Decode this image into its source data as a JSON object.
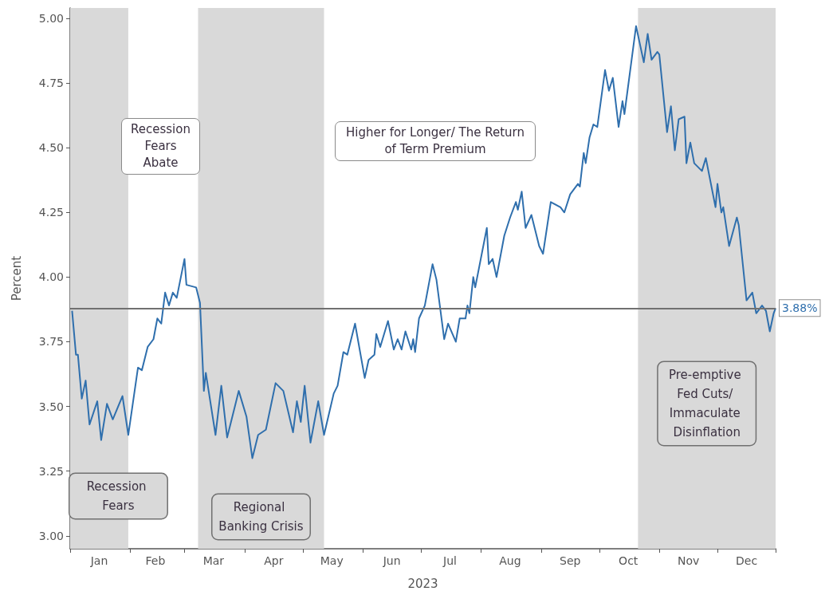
{
  "chart_data": {
    "type": "line",
    "xlabel": "2023",
    "ylabel": "Percent",
    "x": [
      "2023-01-02",
      "2023-01-04",
      "2023-01-05",
      "2023-01-07",
      "2023-01-09",
      "2023-01-11",
      "2023-01-15",
      "2023-01-17",
      "2023-01-20",
      "2023-01-23",
      "2023-01-28",
      "2023-01-31",
      "2023-02-05",
      "2023-02-07",
      "2023-02-10",
      "2023-02-13",
      "2023-02-15",
      "2023-02-17",
      "2023-02-19",
      "2023-02-21",
      "2023-02-23",
      "2023-02-25",
      "2023-03-01",
      "2023-03-02",
      "2023-03-07",
      "2023-03-09",
      "2023-03-11",
      "2023-03-12",
      "2023-03-17",
      "2023-03-20",
      "2023-03-23",
      "2023-03-29",
      "2023-04-02",
      "2023-04-05",
      "2023-04-08",
      "2023-04-12",
      "2023-04-17",
      "2023-04-21",
      "2023-04-26",
      "2023-04-28",
      "2023-04-30",
      "2023-05-02",
      "2023-05-05",
      "2023-05-09",
      "2023-05-12",
      "2023-05-17",
      "2023-05-19",
      "2023-05-22",
      "2023-05-24",
      "2023-05-28",
      "2023-06-02",
      "2023-06-04",
      "2023-06-07",
      "2023-06-08",
      "2023-06-10",
      "2023-06-14",
      "2023-06-17",
      "2023-06-19",
      "2023-06-21",
      "2023-06-23",
      "2023-06-26",
      "2023-06-27",
      "2023-06-28",
      "2023-06-30",
      "2023-07-03",
      "2023-07-07",
      "2023-07-09",
      "2023-07-13",
      "2023-07-15",
      "2023-07-19",
      "2023-07-21",
      "2023-07-24",
      "2023-07-25",
      "2023-07-26",
      "2023-07-28",
      "2023-07-29",
      "2023-08-04",
      "2023-08-05",
      "2023-08-07",
      "2023-08-09",
      "2023-08-13",
      "2023-08-16",
      "2023-08-19",
      "2023-08-20",
      "2023-08-22",
      "2023-08-24",
      "2023-08-27",
      "2023-08-31",
      "2023-09-02",
      "2023-09-06",
      "2023-09-11",
      "2023-09-13",
      "2023-09-16",
      "2023-09-20",
      "2023-09-21",
      "2023-09-23",
      "2023-09-24",
      "2023-09-26",
      "2023-09-28",
      "2023-09-30",
      "2023-10-04",
      "2023-10-06",
      "2023-10-08",
      "2023-10-11",
      "2023-10-13",
      "2023-10-14",
      "2023-10-20",
      "2023-10-24",
      "2023-10-26",
      "2023-10-28",
      "2023-10-31",
      "2023-11-01",
      "2023-11-05",
      "2023-11-07",
      "2023-11-09",
      "2023-11-11",
      "2023-11-14",
      "2023-11-15",
      "2023-11-17",
      "2023-11-19",
      "2023-11-23",
      "2023-11-25",
      "2023-11-30",
      "2023-12-01",
      "2023-12-03",
      "2023-12-04",
      "2023-12-07",
      "2023-12-11",
      "2023-12-12",
      "2023-12-16",
      "2023-12-19",
      "2023-12-21",
      "2023-12-24",
      "2023-12-26",
      "2023-12-28",
      "2023-12-30",
      "2023-12-31"
    ],
    "series": [
      {
        "color": "#2f6fad",
        "values": [
          3.87,
          3.7,
          3.7,
          3.53,
          3.6,
          3.43,
          3.52,
          3.37,
          3.51,
          3.45,
          3.54,
          3.39,
          3.65,
          3.64,
          3.73,
          3.76,
          3.84,
          3.82,
          3.94,
          3.89,
          3.94,
          3.92,
          4.07,
          3.97,
          3.96,
          3.9,
          3.56,
          3.63,
          3.39,
          3.58,
          3.38,
          3.56,
          3.46,
          3.3,
          3.39,
          3.41,
          3.59,
          3.56,
          3.4,
          3.52,
          3.44,
          3.58,
          3.36,
          3.52,
          3.39,
          3.55,
          3.58,
          3.71,
          3.7,
          3.82,
          3.61,
          3.68,
          3.7,
          3.78,
          3.73,
          3.83,
          3.72,
          3.76,
          3.72,
          3.79,
          3.72,
          3.76,
          3.71,
          3.84,
          3.89,
          4.05,
          3.99,
          3.76,
          3.82,
          3.75,
          3.84,
          3.84,
          3.89,
          3.86,
          4.0,
          3.96,
          4.19,
          4.05,
          4.07,
          4.0,
          4.16,
          4.23,
          4.29,
          4.26,
          4.33,
          4.19,
          4.24,
          4.12,
          4.09,
          4.29,
          4.27,
          4.25,
          4.32,
          4.36,
          4.35,
          4.48,
          4.44,
          4.54,
          4.59,
          4.58,
          4.8,
          4.72,
          4.77,
          4.58,
          4.68,
          4.63,
          4.97,
          4.83,
          4.94,
          4.84,
          4.87,
          4.86,
          4.56,
          4.66,
          4.49,
          4.61,
          4.62,
          4.44,
          4.52,
          4.44,
          4.41,
          4.46,
          4.27,
          4.36,
          4.25,
          4.27,
          4.12,
          4.23,
          4.2,
          3.91,
          3.94,
          3.86,
          3.89,
          3.87,
          3.79,
          3.86,
          3.88
        ]
      }
    ],
    "xlim": [
      "2023-01-01",
      "2023-12-31"
    ],
    "xticks": [
      {
        "value": "2023-01-01",
        "label": null
      },
      {
        "value": "2023-01-16",
        "label": "Jan"
      },
      {
        "value": "2023-02-01",
        "label": null
      },
      {
        "value": "2023-02-14",
        "label": "Feb"
      },
      {
        "value": "2023-03-01",
        "label": null
      },
      {
        "value": "2023-03-16",
        "label": "Mar"
      },
      {
        "value": "2023-04-01",
        "label": null
      },
      {
        "value": "2023-04-16",
        "label": "Apr"
      },
      {
        "value": "2023-05-01",
        "label": null
      },
      {
        "value": "2023-05-16",
        "label": "May"
      },
      {
        "value": "2023-06-01",
        "label": null
      },
      {
        "value": "2023-06-16",
        "label": "Jun"
      },
      {
        "value": "2023-07-01",
        "label": null
      },
      {
        "value": "2023-07-16",
        "label": "Jul"
      },
      {
        "value": "2023-08-01",
        "label": null
      },
      {
        "value": "2023-08-16",
        "label": "Aug"
      },
      {
        "value": "2023-09-01",
        "label": null
      },
      {
        "value": "2023-09-16",
        "label": "Sep"
      },
      {
        "value": "2023-10-01",
        "label": null
      },
      {
        "value": "2023-10-16",
        "label": "Oct"
      },
      {
        "value": "2023-11-01",
        "label": null
      },
      {
        "value": "2023-11-16",
        "label": "Nov"
      },
      {
        "value": "2023-12-01",
        "label": null
      },
      {
        "value": "2023-12-16",
        "label": "Dec"
      },
      {
        "value": "2023-12-31",
        "label": null
      }
    ],
    "ylim": [
      2.95,
      5.04
    ],
    "yticks": [
      {
        "value": 3,
        "label": "3.00"
      },
      {
        "value": 3.25,
        "label": "3.25"
      },
      {
        "value": 3.5,
        "label": "3.50"
      },
      {
        "value": 3.75,
        "label": "3.75"
      },
      {
        "value": 4,
        "label": "4.00"
      },
      {
        "value": 4.25,
        "label": "4.25"
      },
      {
        "value": 4.5,
        "label": "4.50"
      },
      {
        "value": 4.75,
        "label": "4.75"
      },
      {
        "value": 5,
        "label": "5.00"
      }
    ],
    "grid": false,
    "ref_lines": [
      {
        "axis": "y",
        "value": 3.88,
        "label": "3.88%",
        "color": "#707070"
      }
    ],
    "bands": [
      {
        "axis": "x",
        "from": "2023-01-01",
        "to": "2023-01-31",
        "label": "Recession Fears",
        "color": "#d9d9d9"
      },
      {
        "axis": "x",
        "from": "2023-03-08",
        "to": "2023-05-12",
        "label": "Regional Banking Crisis",
        "color": "#d9d9d9"
      },
      {
        "axis": "x",
        "from": "2023-10-21",
        "to": "2023-12-31",
        "label": "Pre-emptive Fed Cuts/ Immaculate Disinflation",
        "color": "#d9d9d9"
      }
    ],
    "annotations": [
      "Recession Fears Abate",
      "Higher for Longer/ The Return of Term Premium"
    ]
  }
}
